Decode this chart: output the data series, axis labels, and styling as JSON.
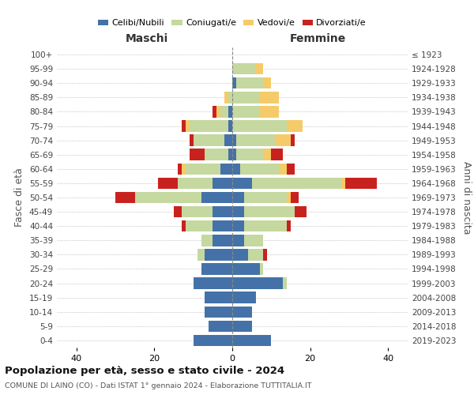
{
  "age_groups": [
    "0-4",
    "5-9",
    "10-14",
    "15-19",
    "20-24",
    "25-29",
    "30-34",
    "35-39",
    "40-44",
    "45-49",
    "50-54",
    "55-59",
    "60-64",
    "65-69",
    "70-74",
    "75-79",
    "80-84",
    "85-89",
    "90-94",
    "95-99",
    "100+"
  ],
  "birth_years": [
    "2019-2023",
    "2014-2018",
    "2009-2013",
    "2004-2008",
    "1999-2003",
    "1994-1998",
    "1989-1993",
    "1984-1988",
    "1979-1983",
    "1974-1978",
    "1969-1973",
    "1964-1968",
    "1959-1963",
    "1954-1958",
    "1949-1953",
    "1944-1948",
    "1939-1943",
    "1934-1938",
    "1929-1933",
    "1924-1928",
    "≤ 1923"
  ],
  "colors": {
    "celibi": "#4472A8",
    "coniugati": "#C5D8A0",
    "vedovi": "#F5CB6A",
    "divorziati": "#C8221E"
  },
  "legend_labels": [
    "Celibi/Nubili",
    "Coniugati/e",
    "Vedovi/e",
    "Divorziati/e"
  ],
  "maschi": {
    "celibi": [
      10,
      6,
      7,
      7,
      10,
      8,
      7,
      5,
      5,
      5,
      8,
      5,
      3,
      1,
      2,
      1,
      1,
      0,
      0,
      0,
      0
    ],
    "coniugati": [
      0,
      0,
      0,
      0,
      0,
      0,
      2,
      3,
      7,
      8,
      17,
      9,
      9,
      6,
      8,
      10,
      2,
      1,
      0,
      0,
      0
    ],
    "vedovi": [
      0,
      0,
      0,
      0,
      0,
      0,
      0,
      0,
      0,
      0,
      0,
      0,
      1,
      0,
      0,
      1,
      1,
      1,
      0,
      0,
      0
    ],
    "divorziati": [
      0,
      0,
      0,
      0,
      0,
      0,
      0,
      0,
      1,
      2,
      5,
      5,
      1,
      4,
      1,
      1,
      1,
      0,
      0,
      0,
      0
    ]
  },
  "femmine": {
    "nubili": [
      10,
      5,
      5,
      6,
      13,
      7,
      4,
      3,
      3,
      3,
      3,
      5,
      2,
      1,
      1,
      0,
      0,
      0,
      1,
      0,
      0
    ],
    "coniugate": [
      0,
      0,
      0,
      0,
      1,
      1,
      4,
      5,
      11,
      13,
      11,
      23,
      10,
      7,
      10,
      14,
      7,
      7,
      7,
      6,
      0
    ],
    "vedove": [
      0,
      0,
      0,
      0,
      0,
      0,
      0,
      0,
      0,
      0,
      1,
      1,
      2,
      2,
      4,
      4,
      5,
      5,
      2,
      2,
      0
    ],
    "divorziate": [
      0,
      0,
      0,
      0,
      0,
      0,
      1,
      0,
      1,
      3,
      2,
      8,
      2,
      3,
      1,
      0,
      0,
      0,
      0,
      0,
      0
    ]
  },
  "title_main": "Popolazione per età, sesso e stato civile - 2024",
  "title_sub": "COMUNE DI LAINO (CO) - Dati ISTAT 1° gennaio 2024 - Elaborazione TUTTITALIA.IT",
  "xlabel_left": "Maschi",
  "xlabel_right": "Femmine",
  "ylabel_left": "Fasce di età",
  "ylabel_right": "Anni di nascita",
  "xlim": 45,
  "background_color": "#ffffff",
  "grid_color": "#cccccc"
}
